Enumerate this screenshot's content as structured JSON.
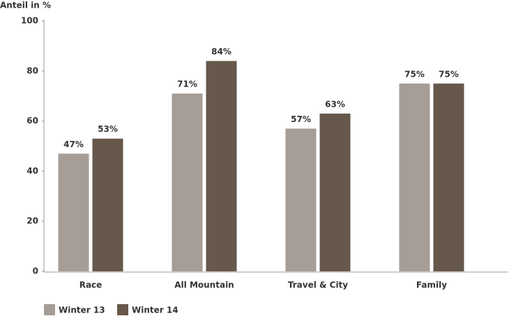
{
  "chart_data": {
    "type": "bar",
    "y_axis_label": "Anteil in %",
    "categories": [
      "Race",
      "All Mountain",
      "Travel & City",
      "Family"
    ],
    "series": [
      {
        "name": "Winter 13",
        "color": "#a59d96",
        "values": [
          47,
          71,
          57,
          75
        ],
        "value_labels": [
          "47%",
          "71%",
          "57%",
          "75%"
        ]
      },
      {
        "name": "Winter 14",
        "color": "#66584b",
        "values": [
          53,
          84,
          63,
          75
        ],
        "value_labels": [
          "53%",
          "84%",
          "63%",
          "75%"
        ]
      }
    ],
    "ylim": [
      0,
      100
    ],
    "yticks": [
      0,
      20,
      40,
      60,
      80,
      100
    ],
    "legend": "bottom-left"
  }
}
